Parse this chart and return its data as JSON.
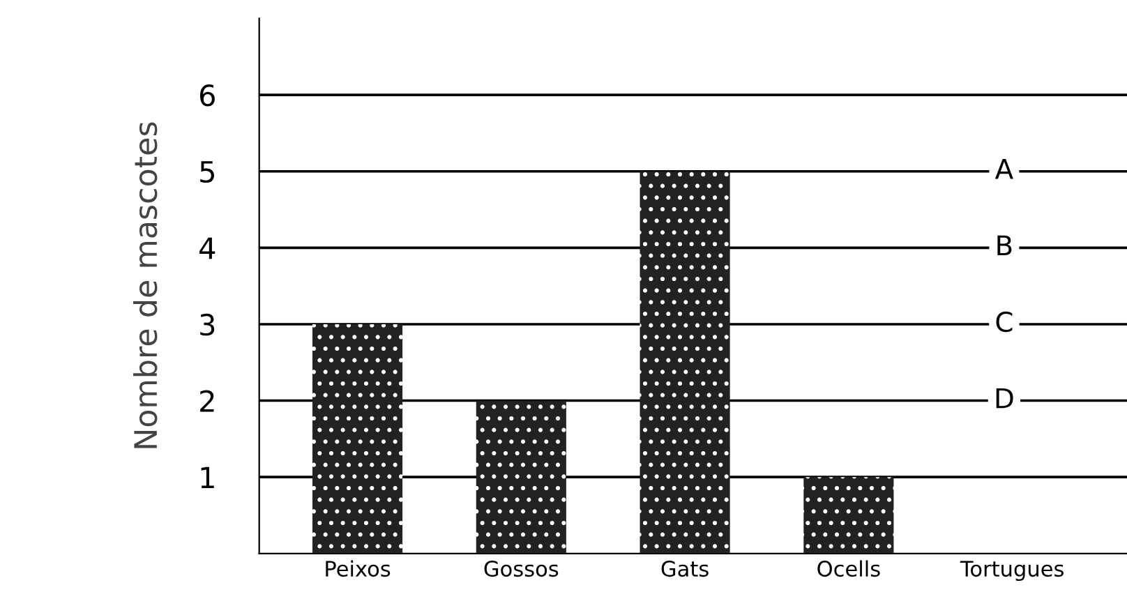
{
  "chart_data": {
    "type": "bar",
    "ylabel": "Nombre de mascotes",
    "categories": [
      "Peixos",
      "Gossos",
      "Gats",
      "Ocells",
      "Tortugues"
    ],
    "values": [
      3,
      2,
      5,
      1,
      null
    ],
    "color": "#222222",
    "ylim": [
      0,
      7
    ],
    "yticks": [
      1,
      2,
      3,
      4,
      5,
      6
    ],
    "grid": "y",
    "annotations": [
      "A",
      "B",
      "C",
      "D"
    ]
  }
}
